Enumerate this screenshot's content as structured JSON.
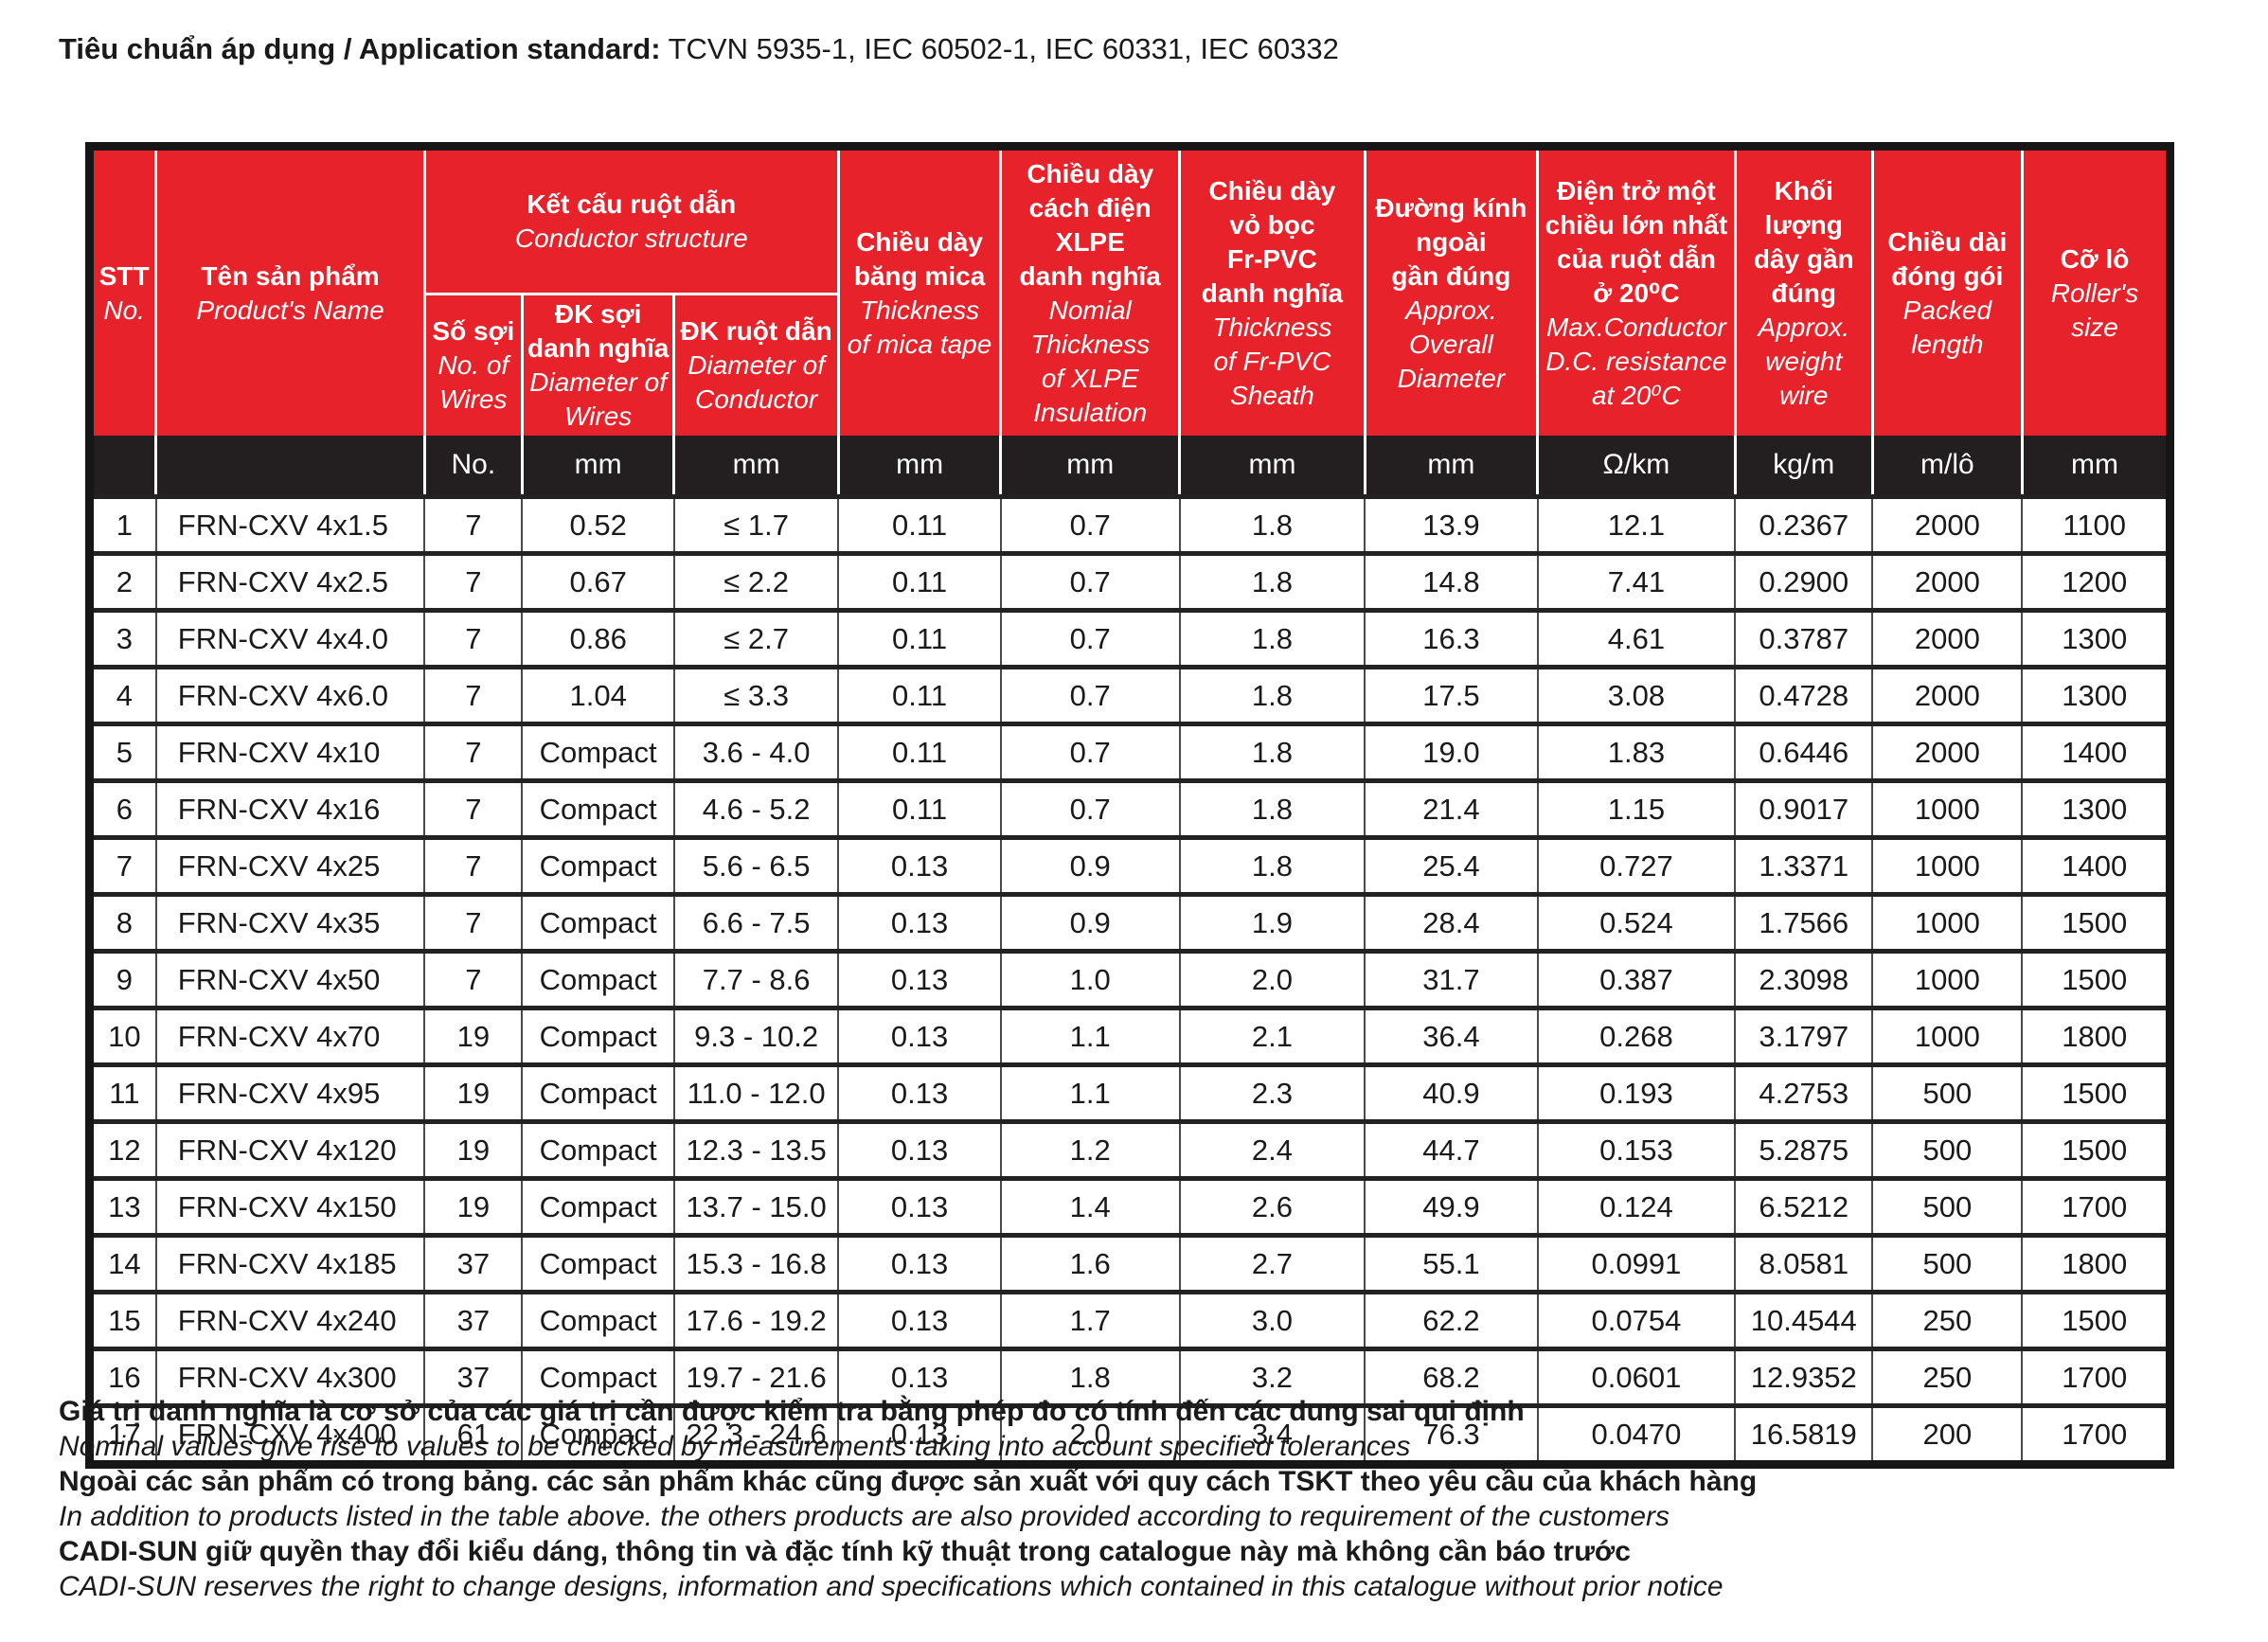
{
  "colors": {
    "accent_red": "#E8222A",
    "units_black": "#231F20",
    "text": "#1a1a1a"
  },
  "page": {
    "title_label": "Tiêu chuẩn áp dụng / Application standard:",
    "title_standards": " TCVN 5935-1, IEC 60502-1, IEC 60331, IEC 60332"
  },
  "table": {
    "col_keys": [
      "stt",
      "product_name",
      "num_wires",
      "wire_diameter",
      "conductor_diameter",
      "mica_thickness",
      "xlpe_thickness",
      "pvc_thickness",
      "overall_diameter",
      "dc_resistance",
      "weight",
      "packed_length",
      "roller_size"
    ],
    "header": {
      "stt": {
        "vi": "STT",
        "en": "No."
      },
      "product": {
        "vi": "Tên sản phẩm",
        "en": "Product's Name"
      },
      "conductor_group": {
        "vi": "Kết cấu ruột dẫn",
        "en": "Conductor structure"
      },
      "sub": [
        {
          "vi": "Số sợi",
          "en": "No. of\nWires"
        },
        {
          "vi": "ĐK sợi\ndanh nghĩa",
          "en": "Diameter of\nWires"
        },
        {
          "vi": "ĐK ruột dẫn",
          "en": "Diameter of\nConductor"
        }
      ],
      "cols": [
        {
          "vi": "Chiều dày\nbăng mica",
          "en": "Thickness\nof mica tape"
        },
        {
          "vi": "Chiều dày\ncách điện\nXLPE\ndanh nghĩa",
          "en": "Nomial\nThickness\nof XLPE\nInsulation"
        },
        {
          "vi": "Chiều dày\nvỏ bọc\nFr-PVC\ndanh nghĩa",
          "en": "Thickness\nof Fr-PVC\nSheath"
        },
        {
          "vi": "Đường kính\nngoài\ngần đúng",
          "en": "Approx.\nOverall\nDiameter"
        },
        {
          "vi": "Điện trở một\nchiều lớn nhất\ncủa ruột dẫn\nở 20⁰C",
          "en": "Max.Conductor\nD.C. resistance\nat 20⁰C"
        },
        {
          "vi": "Khối lượng\ndây gần\nđúng",
          "en": "Approx.\nweight\nwire"
        },
        {
          "vi": "Chiều dài\nđóng gói",
          "en": "Packed\nlength"
        },
        {
          "vi": "Cỡ lô",
          "en": "Roller's\nsize"
        }
      ]
    },
    "units": [
      "No.",
      "mm",
      "mm",
      "mm",
      "mm",
      "mm",
      "mm",
      "Ω/km",
      "kg/m",
      "m/lô",
      "mm"
    ],
    "rows": [
      [
        "1",
        "FRN-CXV 4x1.5",
        "7",
        "0.52",
        "≤ 1.7",
        "0.11",
        "0.7",
        "1.8",
        "13.9",
        "12.1",
        "0.2367",
        "2000",
        "1100"
      ],
      [
        "2",
        "FRN-CXV 4x2.5",
        "7",
        "0.67",
        "≤ 2.2",
        "0.11",
        "0.7",
        "1.8",
        "14.8",
        "7.41",
        "0.2900",
        "2000",
        "1200"
      ],
      [
        "3",
        "FRN-CXV 4x4.0",
        "7",
        "0.86",
        "≤ 2.7",
        "0.11",
        "0.7",
        "1.8",
        "16.3",
        "4.61",
        "0.3787",
        "2000",
        "1300"
      ],
      [
        "4",
        "FRN-CXV 4x6.0",
        "7",
        "1.04",
        "≤ 3.3",
        "0.11",
        "0.7",
        "1.8",
        "17.5",
        "3.08",
        "0.4728",
        "2000",
        "1300"
      ],
      [
        "5",
        "FRN-CXV 4x10",
        "7",
        "Compact",
        "3.6 - 4.0",
        "0.11",
        "0.7",
        "1.8",
        "19.0",
        "1.83",
        "0.6446",
        "2000",
        "1400"
      ],
      [
        "6",
        "FRN-CXV 4x16",
        "7",
        "Compact",
        "4.6 - 5.2",
        "0.11",
        "0.7",
        "1.8",
        "21.4",
        "1.15",
        "0.9017",
        "1000",
        "1300"
      ],
      [
        "7",
        "FRN-CXV 4x25",
        "7",
        "Compact",
        "5.6 - 6.5",
        "0.13",
        "0.9",
        "1.8",
        "25.4",
        "0.727",
        "1.3371",
        "1000",
        "1400"
      ],
      [
        "8",
        "FRN-CXV 4x35",
        "7",
        "Compact",
        "6.6 - 7.5",
        "0.13",
        "0.9",
        "1.9",
        "28.4",
        "0.524",
        "1.7566",
        "1000",
        "1500"
      ],
      [
        "9",
        "FRN-CXV 4x50",
        "7",
        "Compact",
        "7.7 - 8.6",
        "0.13",
        "1.0",
        "2.0",
        "31.7",
        "0.387",
        "2.3098",
        "1000",
        "1500"
      ],
      [
        "10",
        "FRN-CXV 4x70",
        "19",
        "Compact",
        "9.3 - 10.2",
        "0.13",
        "1.1",
        "2.1",
        "36.4",
        "0.268",
        "3.1797",
        "1000",
        "1800"
      ],
      [
        "11",
        "FRN-CXV 4x95",
        "19",
        "Compact",
        "11.0 - 12.0",
        "0.13",
        "1.1",
        "2.3",
        "40.9",
        "0.193",
        "4.2753",
        "500",
        "1500"
      ],
      [
        "12",
        "FRN-CXV 4x120",
        "19",
        "Compact",
        "12.3 - 13.5",
        "0.13",
        "1.2",
        "2.4",
        "44.7",
        "0.153",
        "5.2875",
        "500",
        "1500"
      ],
      [
        "13",
        "FRN-CXV 4x150",
        "19",
        "Compact",
        "13.7 - 15.0",
        "0.13",
        "1.4",
        "2.6",
        "49.9",
        "0.124",
        "6.5212",
        "500",
        "1700"
      ],
      [
        "14",
        "FRN-CXV 4x185",
        "37",
        "Compact",
        "15.3 - 16.8",
        "0.13",
        "1.6",
        "2.7",
        "55.1",
        "0.0991",
        "8.0581",
        "500",
        "1800"
      ],
      [
        "15",
        "FRN-CXV 4x240",
        "37",
        "Compact",
        "17.6 - 19.2",
        "0.13",
        "1.7",
        "3.0",
        "62.2",
        "0.0754",
        "10.4544",
        "250",
        "1500"
      ],
      [
        "16",
        "FRN-CXV 4x300",
        "37",
        "Compact",
        "19.7 - 21.6",
        "0.13",
        "1.8",
        "3.2",
        "68.2",
        "0.0601",
        "12.9352",
        "250",
        "1700"
      ],
      [
        "17",
        "FRN-CXV 4x400",
        "61",
        "Compact",
        "22.3 - 24.6",
        "0.13",
        "2.0",
        "3.4",
        "76.3",
        "0.0470",
        "16.5819",
        "200",
        "1700"
      ]
    ]
  },
  "footer": {
    "lines": [
      "Giá trị danh nghĩa là cơ sở của các giá trị cần được kiểm tra bằng phép đo có tính đến các dung sai qui định",
      "Nominal values give rise to values to be checked by measurements taking into account specified tolerances",
      "Ngoài các sản phẩm có trong bảng. các sản phẩm khác cũng được sản xuất với quy cách TSKT theo yêu cầu của khách hàng",
      "In addition to products listed in the table above. the others products are also provided according to requirement of the customers",
      "CADI-SUN giữ quyền thay đổi kiểu dáng, thông tin và đặc tính kỹ thuật trong catalogue này mà không cần báo trước",
      "CADI-SUN reserves the right to change designs, information and specifications which contained in this catalogue without prior notice"
    ]
  }
}
